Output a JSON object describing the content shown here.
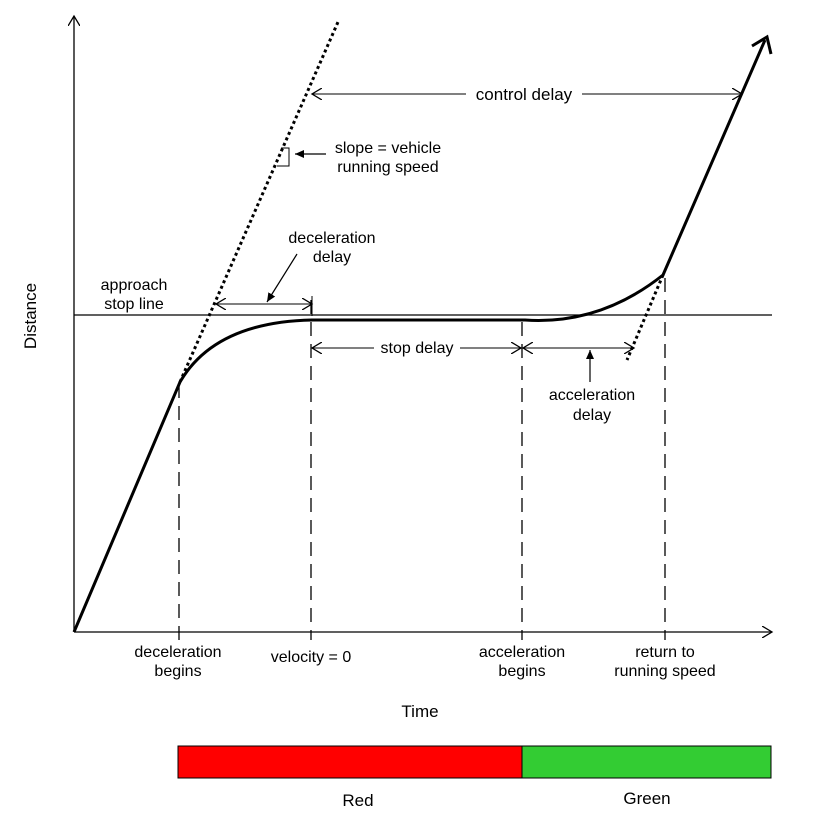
{
  "axes": {
    "y_label": "Distance",
    "x_label": "Time"
  },
  "labels": {
    "control_delay": "control delay",
    "slope_line1": "slope = vehicle",
    "slope_line2": "running speed",
    "decel_delay_line1": "deceleration",
    "decel_delay_line2": "delay",
    "approach_line1": "approach",
    "approach_line2": "stop line",
    "stop_delay": "stop delay",
    "accel_delay_line1": "acceleration",
    "accel_delay_line2": "delay"
  },
  "time_markers": [
    {
      "line1": "deceleration",
      "line2": "begins"
    },
    {
      "line1": "velocity = 0",
      "line2": ""
    },
    {
      "line1": "acceleration",
      "line2": "begins"
    },
    {
      "line1": "return to",
      "line2": "running speed"
    }
  ],
  "signal_bar": {
    "red_label": "Red",
    "green_label": "Green",
    "red_color": "#ff0000",
    "green_color": "#33cc33"
  }
}
